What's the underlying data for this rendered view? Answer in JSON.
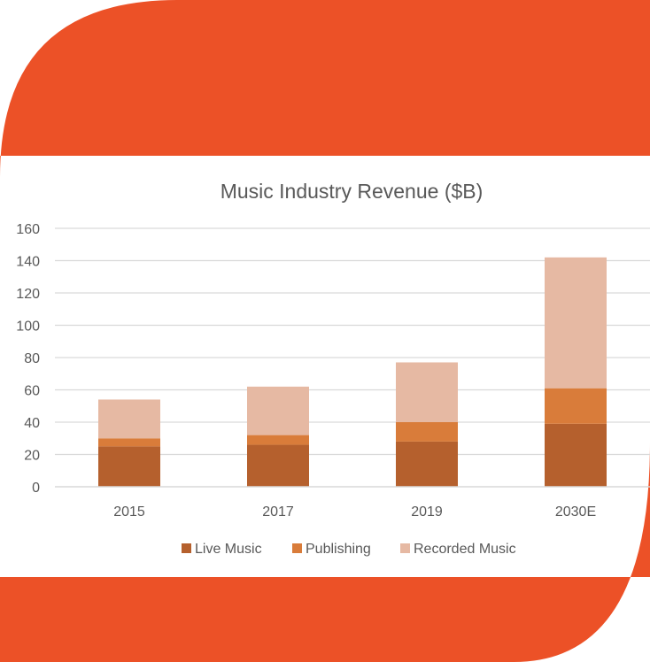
{
  "theme": {
    "accent": "#EC5127",
    "live_music": "#B5602D",
    "publishing": "#D97C3A",
    "recorded_music": "#E6B9A3",
    "gridline": "#D9D9D9",
    "text": "#595959"
  },
  "chart_data": {
    "type": "bar",
    "stacked": true,
    "title": "Music Industry Revenue ($B)",
    "xlabel": "",
    "ylabel": "",
    "categories": [
      "2015",
      "2017",
      "2019",
      "2030E"
    ],
    "series": [
      {
        "name": "Live Music",
        "color": "#B5602D",
        "values": [
          25,
          26,
          28,
          39
        ]
      },
      {
        "name": "Publishing",
        "color": "#D97C3A",
        "values": [
          5,
          6,
          12,
          22
        ]
      },
      {
        "name": "Recorded Music",
        "color": "#E6B9A3",
        "values": [
          24,
          30,
          37,
          81
        ]
      }
    ],
    "ylim": [
      0,
      160
    ],
    "yticks": [
      "0",
      "20",
      "40",
      "60",
      "80",
      "100",
      "120",
      "140",
      "160"
    ],
    "grid": true,
    "legend_position": "bottom"
  }
}
